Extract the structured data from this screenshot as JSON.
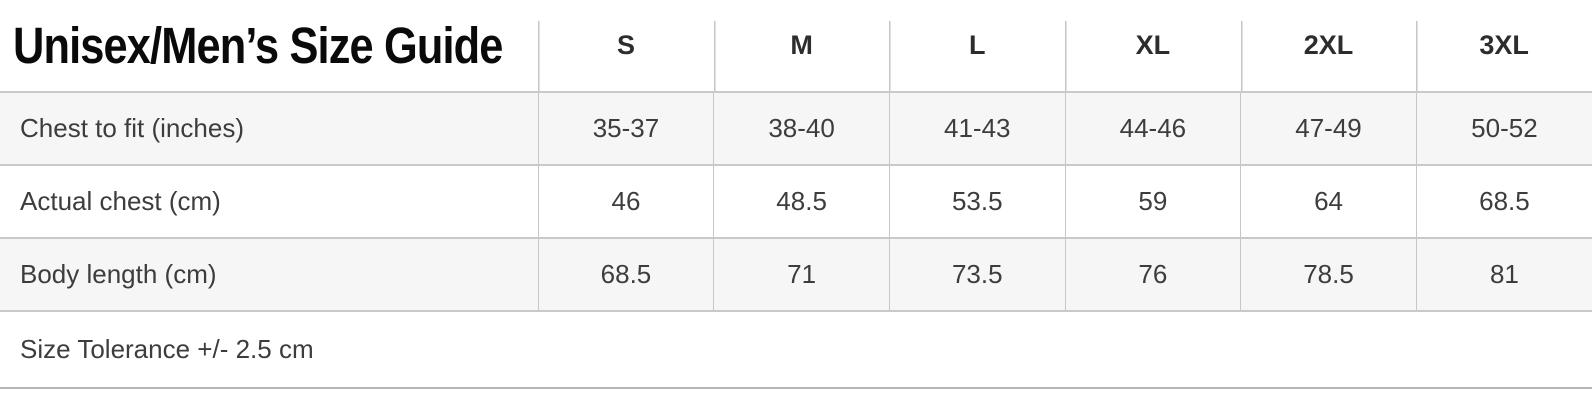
{
  "chart_data": {
    "type": "table",
    "title": "Unisex/Men’s Size Guide",
    "columns": [
      "S",
      "M",
      "L",
      "XL",
      "2XL",
      "3XL"
    ],
    "rows": [
      {
        "label": "Chest to fit (inches)",
        "values": [
          "35-37",
          "38-40",
          "41-43",
          "44-46",
          "47-49",
          "50-52"
        ]
      },
      {
        "label": "Actual chest (cm)",
        "values": [
          "46",
          "48.5",
          "53.5",
          "59",
          "64",
          "68.5"
        ]
      },
      {
        "label": "Body length (cm)",
        "values": [
          "68.5",
          "71",
          "73.5",
          "76",
          "78.5",
          "81"
        ]
      }
    ],
    "footer_note": "Size Tolerance +/- 2.5 cm",
    "layout": {
      "stripe_pattern": "rows 1 and 3 shaded, row 2 white",
      "grid": "horizontal rules between all rows; vertical dividers on size columns only (not footer)"
    }
  },
  "colors": {
    "row_stripe": "#f6f6f6",
    "border": "#c9c9c9",
    "column_divider": "#c6c6c6",
    "bottom_border": "#b5b5b5",
    "title_text": "#0a0a0a",
    "header_text": "#2d2d2d",
    "body_text": "#3d3d3d"
  }
}
